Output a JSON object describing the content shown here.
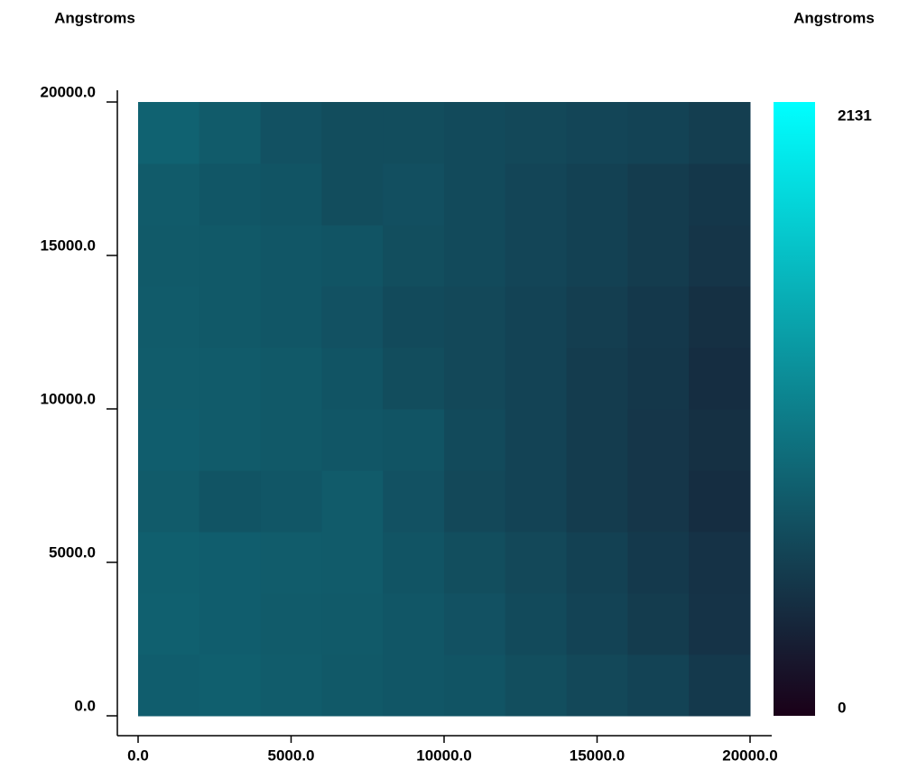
{
  "chart_data": {
    "type": "heatmap",
    "ylabel": "Angstroms",
    "zlabel": "Angstroms",
    "x": [
      1000,
      3000,
      5000,
      7000,
      9000,
      11000,
      13000,
      15000,
      17000,
      19000
    ],
    "y": [
      1000,
      3000,
      5000,
      7000,
      9000,
      11000,
      13000,
      15000,
      17000,
      19000
    ],
    "z": [
      [
        780,
        790,
        770,
        740,
        720,
        700,
        650,
        600,
        560,
        480
      ],
      [
        800,
        780,
        760,
        750,
        720,
        680,
        620,
        560,
        500,
        430
      ],
      [
        790,
        780,
        770,
        760,
        700,
        650,
        600,
        540,
        480,
        420
      ],
      [
        760,
        700,
        720,
        760,
        680,
        600,
        560,
        500,
        450,
        380
      ],
      [
        780,
        760,
        740,
        720,
        700,
        620,
        560,
        500,
        450,
        400
      ],
      [
        770,
        760,
        740,
        700,
        640,
        600,
        560,
        500,
        460,
        380
      ],
      [
        760,
        740,
        720,
        680,
        620,
        600,
        560,
        520,
        470,
        400
      ],
      [
        750,
        740,
        720,
        700,
        650,
        620,
        580,
        540,
        500,
        440
      ],
      [
        760,
        720,
        700,
        640,
        660,
        620,
        580,
        540,
        500,
        460
      ],
      [
        820,
        760,
        680,
        640,
        640,
        620,
        600,
        580,
        560,
        520
      ]
    ],
    "xlim": [
      0,
      20000
    ],
    "ylim": [
      0,
      20000
    ],
    "zlim": [
      0,
      2131
    ],
    "xticks": [
      {
        "value": 0,
        "label": "0.0"
      },
      {
        "value": 5000,
        "label": "5000.0"
      },
      {
        "value": 10000,
        "label": "10000.0"
      },
      {
        "value": 15000,
        "label": "15000.0"
      },
      {
        "value": 20000,
        "label": "20000.0"
      }
    ],
    "yticks": [
      {
        "value": 0,
        "label": "0.0"
      },
      {
        "value": 5000,
        "label": "5000.0"
      },
      {
        "value": 10000,
        "label": "10000.0"
      },
      {
        "value": 15000,
        "label": "15000.0"
      },
      {
        "value": 20000,
        "label": "20000.0"
      }
    ],
    "zticks": [
      2131,
      0
    ],
    "colormap": [
      "#1a0018",
      "#00ffff"
    ]
  }
}
